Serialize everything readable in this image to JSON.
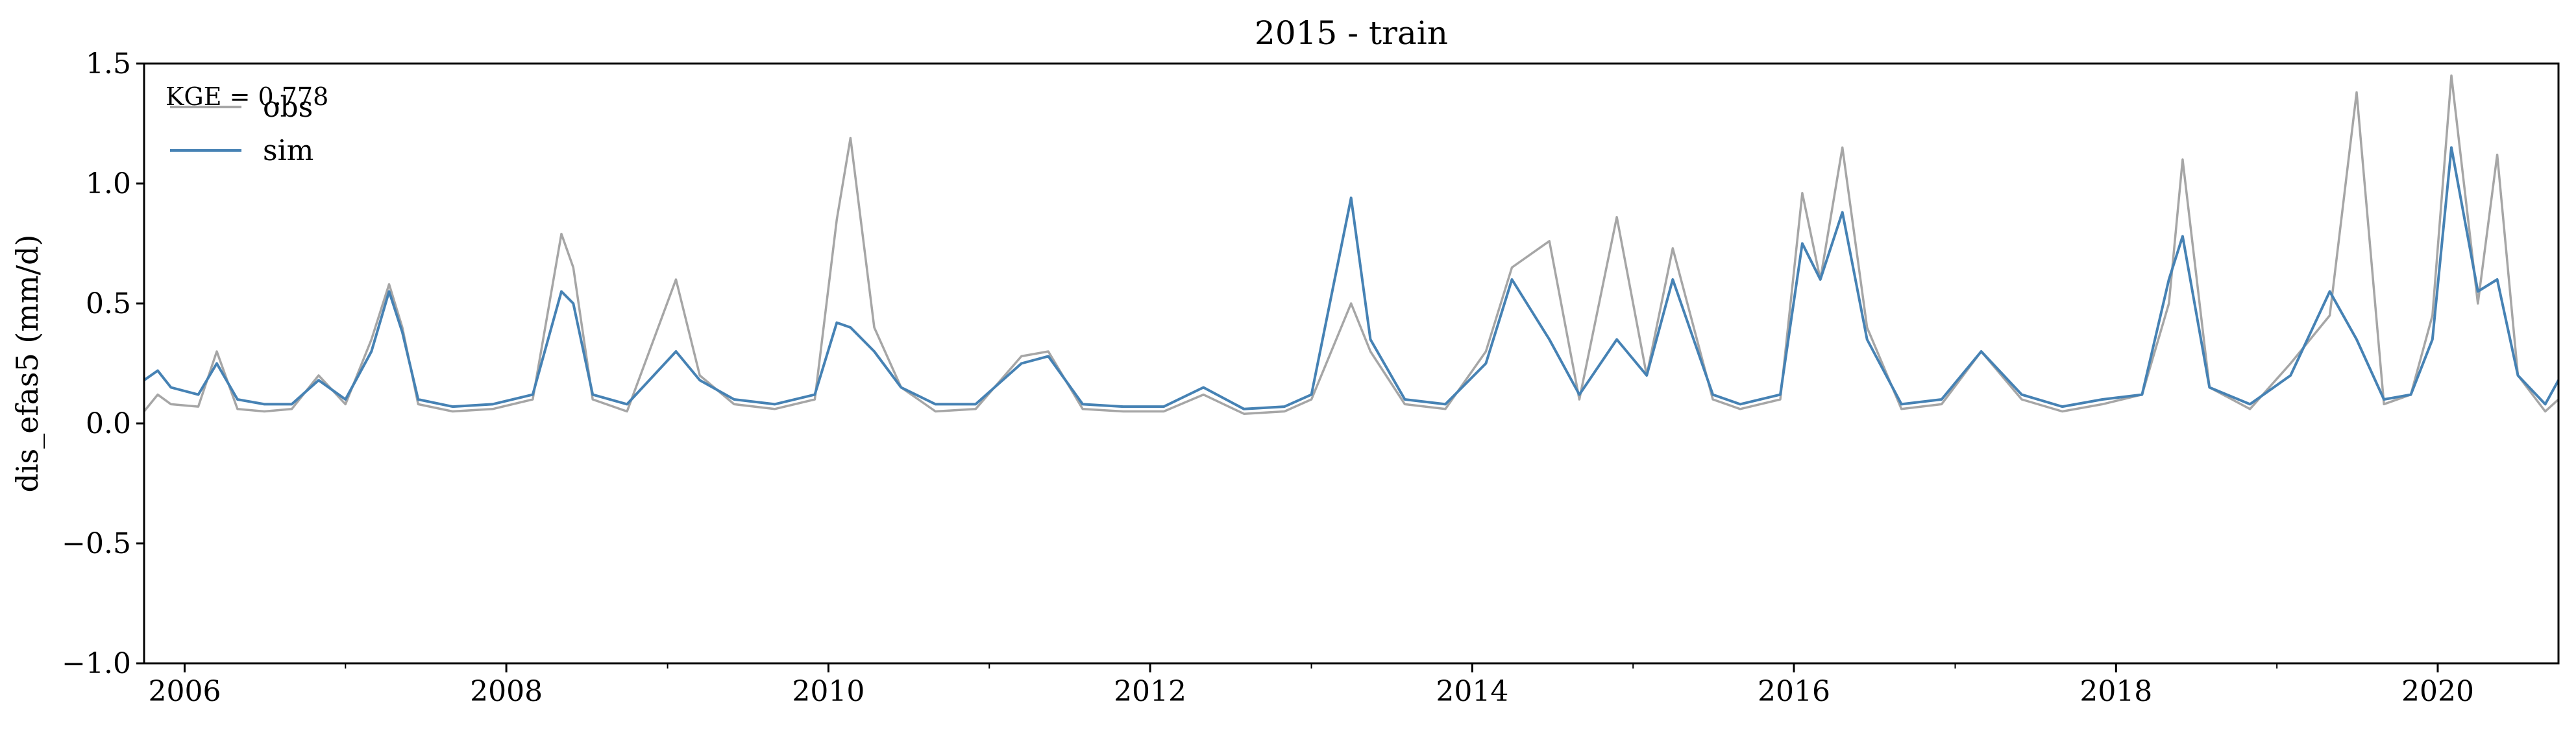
{
  "chart_data": {
    "type": "line",
    "title": "2015 - train",
    "xlabel": "",
    "ylabel": "dis_efas5 (mm/d)",
    "annotation": "KGE = 0.778",
    "xlim": [
      "2005-10-01",
      "2020-10-01"
    ],
    "ylim": [
      -1.0,
      1.5
    ],
    "yticks": [
      -1.0,
      -0.5,
      0.0,
      0.5,
      1.0,
      1.5
    ],
    "ytick_labels": [
      "−1.0",
      "−0.5",
      "0.0",
      "0.5",
      "1.0",
      "1.5"
    ],
    "xticks": [
      "2006-01-01",
      "2008-01-01",
      "2010-01-01",
      "2012-01-01",
      "2014-01-01",
      "2016-01-01",
      "2018-01-01",
      "2020-01-01"
    ],
    "xtick_labels": [
      "2006",
      "2008",
      "2010",
      "2012",
      "2014",
      "2016",
      "2018",
      "2020"
    ],
    "x_minor_ticks": [
      "2007-01-01",
      "2009-01-01",
      "2011-01-01",
      "2013-01-01",
      "2015-01-01",
      "2017-01-01",
      "2019-01-01"
    ],
    "grid": false,
    "legend_position": "top-left",
    "series": [
      {
        "name": "obs",
        "color": "#a6a6a6",
        "x": [
          "2005-10-01",
          "2005-11-01",
          "2005-12-01",
          "2006-02-01",
          "2006-03-15",
          "2006-05-01",
          "2006-07-01",
          "2006-09-01",
          "2006-11-01",
          "2007-01-01",
          "2007-03-01",
          "2007-04-10",
          "2007-05-10",
          "2007-06-15",
          "2007-09-01",
          "2007-12-01",
          "2008-03-01",
          "2008-05-05",
          "2008-06-01",
          "2008-07-15",
          "2008-10-01",
          "2009-01-20",
          "2009-03-15",
          "2009-06-01",
          "2009-09-01",
          "2009-12-01",
          "2010-01-20",
          "2010-02-20",
          "2010-04-15",
          "2010-06-15",
          "2010-09-01",
          "2010-12-01",
          "2011-03-15",
          "2011-05-15",
          "2011-08-01",
          "2011-11-01",
          "2012-02-01",
          "2012-05-01",
          "2012-08-01",
          "2012-11-01",
          "2013-01-01",
          "2013-04-01",
          "2013-05-15",
          "2013-08-01",
          "2013-11-01",
          "2014-02-01",
          "2014-04-01",
          "2014-06-25",
          "2014-09-01",
          "2014-11-25",
          "2015-02-01",
          "2015-04-01",
          "2015-07-01",
          "2015-09-01",
          "2015-12-01",
          "2016-01-20",
          "2016-03-01",
          "2016-04-20",
          "2016-06-15",
          "2016-09-01",
          "2016-12-01",
          "2017-03-01",
          "2017-06-01",
          "2017-09-01",
          "2017-12-01",
          "2018-03-01",
          "2018-05-01",
          "2018-06-01",
          "2018-08-01",
          "2018-11-01",
          "2019-02-01",
          "2019-05-01",
          "2019-07-01",
          "2019-09-01",
          "2019-11-01",
          "2019-12-20",
          "2020-02-01",
          "2020-04-01",
          "2020-05-15",
          "2020-07-01",
          "2020-09-01",
          "2020-10-01"
        ],
        "values": [
          0.05,
          0.12,
          0.08,
          0.07,
          0.3,
          0.06,
          0.05,
          0.06,
          0.2,
          0.08,
          0.35,
          0.58,
          0.4,
          0.08,
          0.05,
          0.06,
          0.1,
          0.79,
          0.65,
          0.1,
          0.05,
          0.6,
          0.2,
          0.08,
          0.06,
          0.1,
          0.85,
          1.19,
          0.4,
          0.15,
          0.05,
          0.06,
          0.28,
          0.3,
          0.06,
          0.05,
          0.05,
          0.12,
          0.04,
          0.05,
          0.1,
          0.5,
          0.3,
          0.08,
          0.06,
          0.3,
          0.65,
          0.76,
          0.1,
          0.86,
          0.2,
          0.73,
          0.1,
          0.06,
          0.1,
          0.96,
          0.6,
          1.15,
          0.4,
          0.06,
          0.08,
          0.3,
          0.1,
          0.05,
          0.08,
          0.12,
          0.5,
          1.1,
          0.15,
          0.06,
          0.25,
          0.45,
          1.38,
          0.08,
          0.12,
          0.45,
          1.45,
          0.5,
          1.12,
          0.2,
          0.05,
          0.1
        ]
      },
      {
        "name": "sim",
        "color": "#4682b4",
        "x": [
          "2005-10-01",
          "2005-11-01",
          "2005-12-01",
          "2006-02-01",
          "2006-03-15",
          "2006-05-01",
          "2006-07-01",
          "2006-09-01",
          "2006-11-01",
          "2007-01-01",
          "2007-03-01",
          "2007-04-10",
          "2007-05-10",
          "2007-06-15",
          "2007-09-01",
          "2007-12-01",
          "2008-03-01",
          "2008-05-05",
          "2008-06-01",
          "2008-07-15",
          "2008-10-01",
          "2009-01-20",
          "2009-03-15",
          "2009-06-01",
          "2009-09-01",
          "2009-12-01",
          "2010-01-20",
          "2010-02-20",
          "2010-04-15",
          "2010-06-15",
          "2010-09-01",
          "2010-12-01",
          "2011-03-15",
          "2011-05-15",
          "2011-08-01",
          "2011-11-01",
          "2012-02-01",
          "2012-05-01",
          "2012-08-01",
          "2012-11-01",
          "2013-01-01",
          "2013-04-01",
          "2013-05-15",
          "2013-08-01",
          "2013-11-01",
          "2014-02-01",
          "2014-04-01",
          "2014-06-25",
          "2014-09-01",
          "2014-11-25",
          "2015-02-01",
          "2015-04-01",
          "2015-07-01",
          "2015-09-01",
          "2015-12-01",
          "2016-01-20",
          "2016-03-01",
          "2016-04-20",
          "2016-06-15",
          "2016-09-01",
          "2016-12-01",
          "2017-03-01",
          "2017-06-01",
          "2017-09-01",
          "2017-12-01",
          "2018-03-01",
          "2018-05-01",
          "2018-06-01",
          "2018-08-01",
          "2018-11-01",
          "2019-02-01",
          "2019-05-01",
          "2019-07-01",
          "2019-09-01",
          "2019-11-01",
          "2019-12-20",
          "2020-02-01",
          "2020-04-01",
          "2020-05-15",
          "2020-07-01",
          "2020-09-01",
          "2020-10-01"
        ],
        "values": [
          0.18,
          0.22,
          0.15,
          0.12,
          0.25,
          0.1,
          0.08,
          0.08,
          0.18,
          0.1,
          0.3,
          0.55,
          0.38,
          0.1,
          0.07,
          0.08,
          0.12,
          0.55,
          0.5,
          0.12,
          0.08,
          0.3,
          0.18,
          0.1,
          0.08,
          0.12,
          0.42,
          0.4,
          0.3,
          0.15,
          0.08,
          0.08,
          0.25,
          0.28,
          0.08,
          0.07,
          0.07,
          0.15,
          0.06,
          0.07,
          0.12,
          0.94,
          0.35,
          0.1,
          0.08,
          0.25,
          0.6,
          0.35,
          0.12,
          0.35,
          0.2,
          0.6,
          0.12,
          0.08,
          0.12,
          0.75,
          0.6,
          0.88,
          0.35,
          0.08,
          0.1,
          0.3,
          0.12,
          0.07,
          0.1,
          0.12,
          0.6,
          0.78,
          0.15,
          0.08,
          0.2,
          0.55,
          0.35,
          0.1,
          0.12,
          0.35,
          1.15,
          0.55,
          0.6,
          0.2,
          0.08,
          0.18
        ]
      }
    ]
  }
}
